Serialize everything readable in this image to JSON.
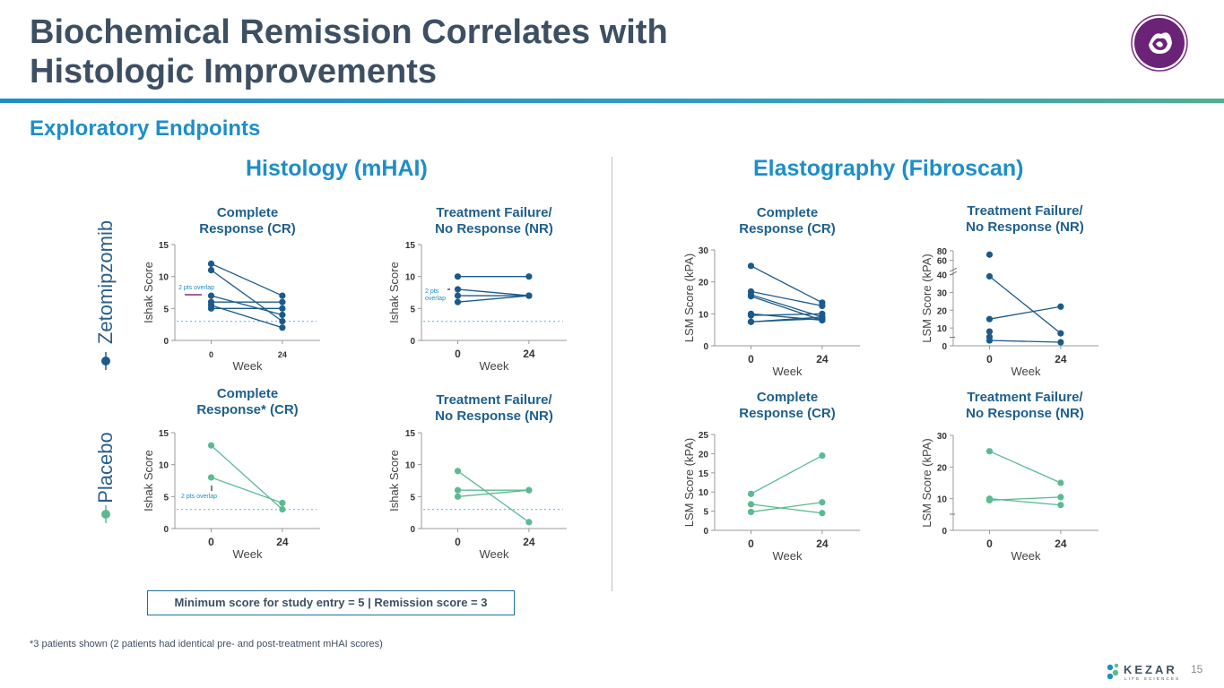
{
  "header": {
    "title_line1": "Biochemical Remission Correlates with",
    "title_line2": "Histologic Improvements",
    "subtitle": "Exploratory Endpoints"
  },
  "sections": {
    "histology": "Histology (mHAI)",
    "elastography": "Elastography (Fibroscan)"
  },
  "rows": {
    "zetomipzomib": "Zetomipzomib",
    "placebo": "Placebo"
  },
  "colors": {
    "zeto": "#1a5a8c",
    "placebo": "#5cba92",
    "threshold": "#6fc6e6",
    "overlap_zeto": "#8a2c7a",
    "title_text": "#3d4f63",
    "accent": "#1d8ec9"
  },
  "legend": "Minimum score for study entry = 5  |  Remission score = 3",
  "footnote": "*3 patients shown (2 patients had identical pre- and post-treatment mHAI scores)",
  "page_number": "15",
  "logos": {
    "company": "KEZAR",
    "company_sub": "LIFE SCIENCES"
  },
  "chart_data": [
    {
      "id": "zeto-hist-cr",
      "type": "line",
      "title_lines": [
        "Complete",
        "Response (CR)"
      ],
      "xlabel": "Week",
      "ylabel": "Ishak Score",
      "ylim": [
        0,
        15
      ],
      "yticks": [
        "0",
        "5",
        "10",
        "15"
      ],
      "categories": [
        "0",
        "24"
      ],
      "threshold": 3,
      "annotation": "2 pts overlap",
      "series": [
        {
          "values": [
            12,
            7
          ]
        },
        {
          "values": [
            11,
            3
          ]
        },
        {
          "values": [
            7,
            4
          ]
        },
        {
          "values": [
            6,
            6
          ]
        },
        {
          "values": [
            5.5,
            2
          ]
        },
        {
          "values": [
            5,
            5
          ]
        }
      ]
    },
    {
      "id": "zeto-hist-nr",
      "type": "line",
      "title_lines": [
        "Treatment Failure/",
        "No Response (NR)"
      ],
      "xlabel": "Week",
      "ylabel": "Ishak Score",
      "ylim": [
        0,
        15
      ],
      "yticks": [
        "0",
        "5",
        "10",
        "15"
      ],
      "categories": [
        "0",
        "24"
      ],
      "threshold": 3,
      "annotation": "2 pts overlap",
      "series": [
        {
          "values": [
            10,
            10
          ]
        },
        {
          "values": [
            8,
            7
          ]
        },
        {
          "values": [
            7,
            7
          ]
        },
        {
          "values": [
            6,
            7
          ]
        }
      ]
    },
    {
      "id": "placebo-hist-cr",
      "type": "line",
      "title_lines": [
        "Complete",
        "Response* (CR)"
      ],
      "xlabel": "Week",
      "ylabel": "Ishak Score",
      "ylim": [
        0,
        15
      ],
      "yticks": [
        "0",
        "5",
        "10",
        "15"
      ],
      "categories": [
        "0",
        "24"
      ],
      "threshold": 3,
      "annotation": "2 pts overlap",
      "series": [
        {
          "values": [
            13,
            3
          ]
        },
        {
          "values": [
            8,
            4
          ]
        }
      ]
    },
    {
      "id": "placebo-hist-nr",
      "type": "line",
      "title_lines": [
        "Treatment Failure/",
        "No Response (NR)"
      ],
      "xlabel": "Week",
      "ylabel": "Ishak Score",
      "ylim": [
        0,
        15
      ],
      "yticks": [
        "0",
        "5",
        "10",
        "15"
      ],
      "categories": [
        "0",
        "24"
      ],
      "threshold": 3,
      "series": [
        {
          "values": [
            9,
            1
          ]
        },
        {
          "values": [
            6,
            6
          ]
        },
        {
          "values": [
            5,
            6
          ]
        }
      ]
    },
    {
      "id": "zeto-lsm-cr",
      "type": "line",
      "title_lines": [
        "Complete",
        "Response (CR)"
      ],
      "xlabel": "Week",
      "ylabel": "LSM  Score  (kPA)",
      "ylim": [
        0,
        30
      ],
      "yticks": [
        "0",
        "10",
        "20",
        "30"
      ],
      "categories": [
        "0",
        "24"
      ],
      "series": [
        {
          "values": [
            25,
            13.5
          ]
        },
        {
          "values": [
            17,
            12.5
          ]
        },
        {
          "values": [
            16,
            9
          ]
        },
        {
          "values": [
            15.5,
            8
          ]
        },
        {
          "values": [
            10,
            8
          ]
        },
        {
          "values": [
            9.5,
            10
          ]
        },
        {
          "values": [
            7.5,
            9
          ]
        },
        {
          "values": [
            7.5,
            8.5
          ]
        }
      ]
    },
    {
      "id": "zeto-lsm-nr",
      "type": "line",
      "title_lines": [
        "Treatment Failure/",
        "No Response (NR)"
      ],
      "xlabel": "Week",
      "ylabel": "LSM Score (kPA)",
      "ylim": [
        0,
        80
      ],
      "yticks": [
        "0",
        "10",
        "20",
        "30",
        "40",
        "60",
        "80"
      ],
      "categories": [
        "0",
        "24"
      ],
      "axis_break": true,
      "series": [
        {
          "values": [
            72,
            null
          ]
        },
        {
          "values": [
            39,
            7
          ]
        },
        {
          "values": [
            15,
            22
          ]
        },
        {
          "values": [
            8,
            null
          ]
        },
        {
          "values": [
            5,
            null
          ]
        },
        {
          "values": [
            3,
            2
          ]
        }
      ]
    },
    {
      "id": "placebo-lsm-cr",
      "type": "line",
      "title_lines": [
        "Complete",
        "Response (CR)"
      ],
      "xlabel": "Week",
      "ylabel": "LSM Score (kPA)",
      "ylim": [
        0,
        25
      ],
      "yticks": [
        "0",
        "5",
        "10",
        "15",
        "20",
        "25"
      ],
      "categories": [
        "0",
        "24"
      ],
      "series": [
        {
          "values": [
            9.5,
            19.5
          ]
        },
        {
          "values": [
            6.8,
            4.5
          ]
        },
        {
          "values": [
            4.8,
            7.3
          ]
        }
      ]
    },
    {
      "id": "placebo-lsm-nr",
      "type": "line",
      "title_lines": [
        "Treatment  Failure/",
        "No Response (NR)"
      ],
      "xlabel": "Week",
      "ylabel": "LSM Score (kPA)",
      "ylim": [
        0,
        30
      ],
      "yticks": [
        "0",
        "10",
        "20",
        "30"
      ],
      "categories": [
        "0",
        "24"
      ],
      "axis_break": true,
      "series": [
        {
          "values": [
            25,
            15
          ]
        },
        {
          "values": [
            10,
            8
          ]
        },
        {
          "values": [
            9.5,
            10.5
          ]
        }
      ]
    }
  ]
}
